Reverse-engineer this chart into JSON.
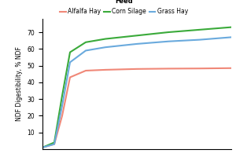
{
  "legend_title": "Feed",
  "ylabel": "NDF Digestibility, % NDF",
  "ylim": [
    0,
    78
  ],
  "yticks": [
    10,
    20,
    30,
    40,
    50,
    60,
    70
  ],
  "series": {
    "Alfalfa Hay": {
      "color": "#f08878",
      "x": [
        0,
        15,
        25,
        35,
        55,
        80,
        120,
        160,
        200,
        240
      ],
      "y": [
        1,
        3,
        20,
        43,
        47,
        47.5,
        48,
        48.2,
        48.3,
        48.5
      ]
    },
    "Corn Silage": {
      "color": "#3aaa3a",
      "x": [
        0,
        15,
        25,
        35,
        55,
        80,
        120,
        160,
        200,
        240
      ],
      "y": [
        1,
        4,
        32,
        58,
        64,
        66,
        68,
        70,
        71.5,
        73
      ]
    },
    "Grass Hay": {
      "color": "#6aaadd",
      "x": [
        0,
        15,
        25,
        35,
        55,
        80,
        120,
        160,
        200,
        240
      ],
      "y": [
        1,
        3,
        26,
        52,
        59,
        61,
        63,
        64.5,
        65.5,
        67
      ]
    }
  },
  "background_color": "#ffffff",
  "linewidth": 1.5,
  "legend_fontsize": 5.5,
  "legend_title_fontsize": 6.0,
  "ylabel_fontsize": 5.5,
  "tick_fontsize": 5.5
}
